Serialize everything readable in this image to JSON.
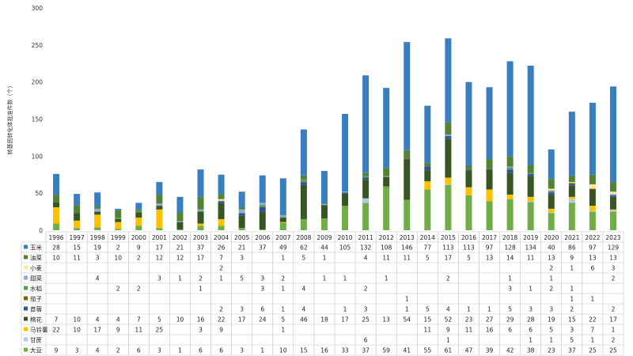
{
  "chart_data": {
    "type": "bar",
    "stacked": true,
    "ylabel": "转基因转化体批准件数（个）",
    "ylim": [
      0,
      300
    ],
    "yticks": [
      0,
      50,
      100,
      150,
      200,
      250,
      300
    ],
    "grid": false,
    "legend_position": "table-left",
    "categories": [
      "1996",
      "1997",
      "1998",
      "1999",
      "2000",
      "2001",
      "2002",
      "2003",
      "2004",
      "2005",
      "2006",
      "2007",
      "2008",
      "2009",
      "2010",
      "2011",
      "2012",
      "2013",
      "2014",
      "2015",
      "2016",
      "2017",
      "2018",
      "2019",
      "2020",
      "2021",
      "2022",
      "2023"
    ],
    "series": [
      {
        "name": "大豆",
        "color": "#70ad47",
        "values": [
          9,
          3,
          4,
          2,
          6,
          3,
          1,
          6,
          6,
          3,
          1,
          10,
          15,
          16,
          33,
          37,
          59,
          41,
          55,
          61,
          47,
          39,
          42,
          38,
          23,
          37,
          25,
          25
        ]
      },
      {
        "name": "甘蔗",
        "color": "#a9cce3",
        "values": [
          null,
          null,
          null,
          null,
          null,
          null,
          null,
          null,
          null,
          null,
          null,
          null,
          null,
          null,
          null,
          6,
          null,
          null,
          null,
          1,
          null,
          null,
          null,
          1,
          1,
          5,
          1,
          2
        ]
      },
      {
        "name": "马铃薯",
        "color": "#ffc000",
        "values": [
          22,
          10,
          17,
          9,
          11,
          25,
          null,
          3,
          9,
          null,
          null,
          1,
          null,
          null,
          null,
          null,
          null,
          null,
          11,
          9,
          11,
          16,
          6,
          6,
          5,
          3,
          7,
          1
        ]
      },
      {
        "name": "棉花",
        "color": "#375623",
        "values": [
          7,
          10,
          4,
          4,
          7,
          5,
          10,
          16,
          22,
          17,
          24,
          5,
          46,
          18,
          17,
          25,
          13,
          54,
          15,
          52,
          23,
          27,
          29,
          28,
          19,
          15,
          22,
          17
        ]
      },
      {
        "name": "苜蓿",
        "color": "#2f5597",
        "values": [
          null,
          null,
          null,
          null,
          null,
          null,
          null,
          null,
          2,
          3,
          6,
          1,
          4,
          null,
          1,
          3,
          null,
          1,
          5,
          4,
          1,
          1,
          5,
          3,
          3,
          2,
          null,
          2
        ]
      },
      {
        "name": "茄子",
        "color": "#806000",
        "values": [
          null,
          null,
          null,
          null,
          null,
          null,
          null,
          null,
          null,
          null,
          null,
          null,
          null,
          null,
          null,
          null,
          null,
          1,
          null,
          null,
          null,
          null,
          null,
          null,
          null,
          1,
          1,
          null
        ]
      },
      {
        "name": "水稻",
        "color": "#5b9b55",
        "values": [
          null,
          null,
          null,
          2,
          2,
          null,
          null,
          1,
          null,
          null,
          3,
          1,
          4,
          null,
          null,
          2,
          null,
          null,
          null,
          null,
          null,
          null,
          3,
          1,
          2,
          1,
          null,
          null
        ]
      },
      {
        "name": "甜菜",
        "color": "#8faadc",
        "values": [
          null,
          null,
          4,
          null,
          null,
          3,
          1,
          2,
          1,
          5,
          3,
          2,
          null,
          1,
          1,
          null,
          1,
          null,
          null,
          2,
          null,
          null,
          1,
          null,
          1,
          null,
          null,
          2
        ]
      },
      {
        "name": "小麦",
        "color": "#ffe699",
        "values": [
          null,
          null,
          null,
          null,
          null,
          null,
          null,
          null,
          2,
          null,
          null,
          null,
          null,
          null,
          null,
          null,
          null,
          null,
          null,
          null,
          null,
          null,
          null,
          null,
          2,
          1,
          6,
          3
        ]
      },
      {
        "name": "油菜",
        "color": "#548235",
        "values": [
          10,
          11,
          3,
          10,
          2,
          12,
          12,
          17,
          7,
          3,
          null,
          1,
          5,
          1,
          null,
          4,
          11,
          11,
          5,
          17,
          5,
          13,
          14,
          11,
          13,
          9,
          13,
          13
        ]
      },
      {
        "name": "玉米",
        "color": "#3a7ec2",
        "values": [
          28,
          15,
          19,
          2,
          9,
          17,
          21,
          37,
          26,
          21,
          37,
          49,
          62,
          44,
          105,
          132,
          108,
          146,
          77,
          113,
          113,
          97,
          128,
          134,
          40,
          86,
          97,
          129
        ]
      }
    ]
  }
}
